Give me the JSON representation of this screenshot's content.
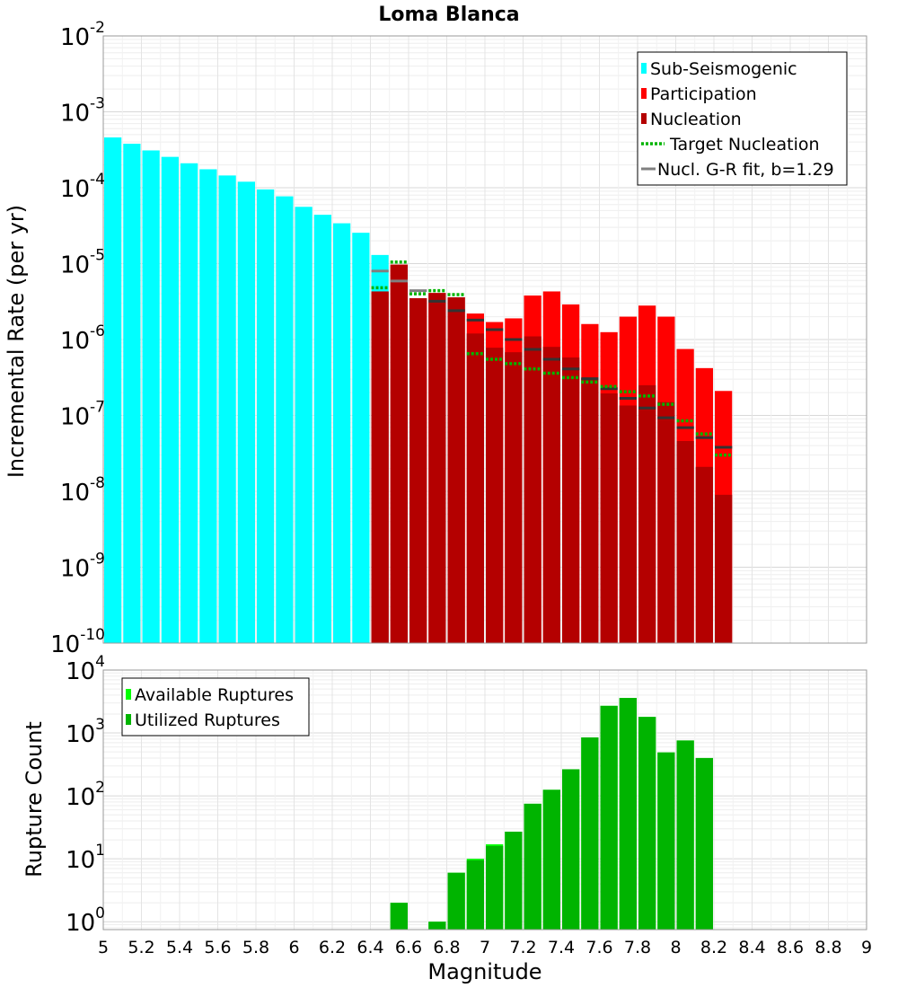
{
  "chart_data": [
    {
      "type": "bar",
      "title": "Loma Blanca",
      "xlabel": "",
      "ylabel": "Incremental Rate (per yr)",
      "yscale": "log",
      "xlim": [
        5,
        9
      ],
      "ylim": [
        1e-10,
        0.01
      ],
      "y_ticks": [
        {
          "base": "10",
          "exp": "-10"
        },
        {
          "base": "10",
          "exp": "-9"
        },
        {
          "base": "10",
          "exp": "-8"
        },
        {
          "base": "10",
          "exp": "-7"
        },
        {
          "base": "10",
          "exp": "-6"
        },
        {
          "base": "10",
          "exp": "-5"
        },
        {
          "base": "10",
          "exp": "-4"
        },
        {
          "base": "10",
          "exp": "-3"
        },
        {
          "base": "10",
          "exp": "-2"
        }
      ],
      "grid": true,
      "legend_position": "top-right",
      "legend": [
        {
          "label": "Sub-Seismogenic",
          "color": "#00ffff",
          "kind": "box"
        },
        {
          "label": "Participation",
          "color": "#ff0000",
          "kind": "box"
        },
        {
          "label": "Nucleation",
          "color": "#b40000",
          "kind": "box"
        },
        {
          "label": "Target Nucleation",
          "color": "#00b400",
          "kind": "dotted"
        },
        {
          "label": "Nucl. G-R fit, b=1.29",
          "color": "#808080",
          "kind": "line"
        }
      ],
      "series": [
        {
          "name": "Sub-Seismogenic",
          "color": "#00ffff",
          "x": [
            5.05,
            5.15,
            5.25,
            5.35,
            5.45,
            5.55,
            5.65,
            5.75,
            5.85,
            5.95,
            6.05,
            6.15,
            6.25,
            6.35,
            6.45
          ],
          "values": [
            0.00046,
            0.00038,
            0.00031,
            0.000255,
            0.00021,
            0.000175,
            0.000145,
            0.00012,
            9.5e-05,
            7.7e-05,
            5.6e-05,
            4.4e-05,
            3.4e-05,
            2.55e-05,
            1.3e-05
          ]
        },
        {
          "name": "Participation",
          "color": "#ff0000",
          "x": [
            6.45,
            6.55,
            6.65,
            6.75,
            6.85,
            6.95,
            7.05,
            7.15,
            7.25,
            7.35,
            7.45,
            7.55,
            7.65,
            7.75,
            7.85,
            7.95,
            8.05,
            8.15,
            8.25
          ],
          "values": [
            4.3e-06,
            9.7e-06,
            3.5e-06,
            4.1e-06,
            3.6e-06,
            2.2e-06,
            1.7e-06,
            1.9e-06,
            3.8e-06,
            4.3e-06,
            2.9e-06,
            1.6e-06,
            1.25e-06,
            2e-06,
            2.8e-06,
            2e-06,
            7.5e-07,
            4.2e-07,
            2.1e-07
          ]
        },
        {
          "name": "Nucleation",
          "color": "#b40000",
          "x": [
            6.45,
            6.55,
            6.65,
            6.75,
            6.85,
            6.95,
            7.05,
            7.15,
            7.25,
            7.35,
            7.45,
            7.55,
            7.65,
            7.75,
            7.85,
            7.95,
            8.05,
            8.15,
            8.25
          ],
          "values": [
            4.3e-06,
            9.7e-06,
            3.5e-06,
            4.1e-06,
            3.6e-06,
            1.2e-06,
            7.8e-07,
            6.8e-07,
            1.1e-06,
            8e-07,
            5.8e-07,
            3.1e-07,
            1.95e-07,
            1.35e-07,
            2.5e-07,
            1.5e-07,
            4.6e-08,
            2.1e-08,
            9e-09
          ]
        },
        {
          "name": "Target Nucleation",
          "color": "#00b400",
          "style": "dotted",
          "x": [
            6.45,
            6.55,
            6.65,
            6.75,
            6.85,
            6.95,
            7.05,
            7.15,
            7.25,
            7.35,
            7.45,
            7.55,
            7.65,
            7.75,
            7.85,
            7.95,
            8.05,
            8.15,
            8.25
          ],
          "values": [
            4.8e-06,
            1.05e-05,
            4e-06,
            4.4e-06,
            3.9e-06,
            6.5e-07,
            5.5e-07,
            4.8e-07,
            4.1e-07,
            3.6e-07,
            3.15e-07,
            2.75e-07,
            2.4e-07,
            2.05e-07,
            1.8e-07,
            1.4e-07,
            8.5e-08,
            5.7e-08,
            3e-08
          ]
        },
        {
          "name": "Nucl. G-R fit, b=1.29",
          "color": "#808080",
          "style": "segment",
          "x": [
            6.45,
            6.55,
            6.65,
            6.75,
            6.85,
            6.95,
            7.05,
            7.15,
            7.25,
            7.35,
            7.45,
            7.55,
            7.65,
            7.75,
            7.85,
            7.95,
            8.05,
            8.15,
            8.25
          ],
          "values": [
            8e-06,
            5.9e-06,
            4.4e-06,
            3.2e-06,
            2.4e-06,
            1.8e-06,
            1.35e-06,
            1e-06,
            7.4e-07,
            5.5e-07,
            4.1e-07,
            3.05e-07,
            2.25e-07,
            1.68e-07,
            1.25e-07,
            9.3e-08,
            6.9e-08,
            5.1e-08,
            3.8e-08
          ]
        }
      ]
    },
    {
      "type": "bar",
      "title": "",
      "xlabel": "Magnitude",
      "ylabel": "Rupture Count",
      "yscale": "log",
      "xlim": [
        5,
        9
      ],
      "ylim": [
        0.75,
        10000
      ],
      "x_ticks": [
        "5",
        "5.2",
        "5.4",
        "5.6",
        "5.8",
        "6",
        "6.2",
        "6.4",
        "6.6",
        "6.8",
        "7",
        "7.2",
        "7.4",
        "7.6",
        "7.8",
        "8",
        "8.2",
        "8.4",
        "8.6",
        "8.8",
        "9"
      ],
      "y_ticks": [
        {
          "base": "10",
          "exp": "0"
        },
        {
          "base": "10",
          "exp": "1"
        },
        {
          "base": "10",
          "exp": "2"
        },
        {
          "base": "10",
          "exp": "3"
        },
        {
          "base": "10",
          "exp": "4"
        }
      ],
      "grid": true,
      "legend_position": "top-left",
      "legend": [
        {
          "label": "Available Ruptures",
          "color": "#00ff00",
          "kind": "box"
        },
        {
          "label": "Utilized Ruptures",
          "color": "#00b400",
          "kind": "box"
        }
      ],
      "series": [
        {
          "name": "Available Ruptures",
          "color": "#00ff00",
          "x": [
            6.55,
            6.75,
            6.85,
            6.95,
            7.05,
            7.15,
            7.25,
            7.35,
            7.45,
            7.55,
            7.65,
            7.75,
            7.85,
            7.95,
            8.05,
            8.15
          ],
          "values": [
            2,
            1,
            6,
            10,
            17,
            27,
            75,
            125,
            265,
            850,
            2700,
            3600,
            1800,
            490,
            760,
            400
          ]
        },
        {
          "name": "Utilized Ruptures",
          "color": "#00b400",
          "x": [
            6.55,
            6.75,
            6.85,
            6.95,
            7.05,
            7.15,
            7.25,
            7.35,
            7.45,
            7.55,
            7.65,
            7.75,
            7.85,
            7.95,
            8.05,
            8.15
          ],
          "values": [
            2,
            1,
            6,
            9.5,
            16,
            27,
            75,
            125,
            265,
            850,
            2700,
            3600,
            1800,
            490,
            760,
            400
          ]
        }
      ]
    }
  ]
}
